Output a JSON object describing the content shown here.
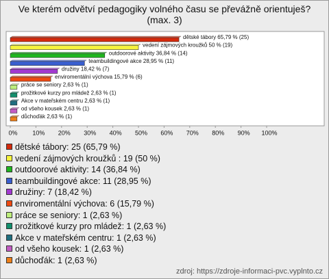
{
  "chart_data": {
    "type": "bar",
    "orientation": "horizontal",
    "title": "Ve kterém odvětví pedagogiky volného času se převážně orientuješ? (max. 3)",
    "categories": [
      "dětské tábory",
      "vedení zájmových kroužků",
      "outdoorové aktivity",
      "teambuildingové akce",
      "družiny",
      "enviromentální výchova",
      "práce se seniory",
      "prožitkové kurzy pro mládež",
      "Akce v mateřském centru",
      "od všeho kousek",
      "důchoďák"
    ],
    "values": [
      65.79,
      50,
      36.84,
      28.95,
      18.42,
      15.79,
      2.63,
      2.63,
      2.63,
      2.63,
      2.63
    ],
    "value_labels": [
      "dětské tábory 65,79 % (25)",
      "vedení zájmových kroužků  50 % (19)",
      "outdoorové aktivity 36,84 % (14)",
      "teambuildingové akce 28,95 % (11)",
      "družiny 18,42 % (7)",
      "enviromentální výchova 15,79 % (6)",
      "práce se seniory 2,63 % (1)",
      "prožitkové kurzy pro mládež 2,63 % (1)",
      "Akce v mateřském centru 2,63 % (1)",
      "od všeho kousek 2,63 % (1)",
      "důchoďák 2,63 % (1)"
    ],
    "legend_labels": [
      "dětské tábory: 25 (65,79 %)",
      "vedení zájmových kroužků : 19 (50 %)",
      "outdoorové aktivity: 14 (36,84 %)",
      "teambuildingové akce: 11 (28,95 %)",
      "družiny: 7 (18,42 %)",
      "enviromentální výchova: 6 (15,79 %)",
      "práce se seniory: 1 (2,63 %)",
      "prožitkové kurzy pro mládež: 1 (2,63 %)",
      "Akce v mateřském centru: 1 (2,63 %)",
      "od všeho kousek: 1 (2,63 %)",
      "důchoďák: 1 (2,63 %)"
    ],
    "colors": [
      "#d42a0c",
      "#f6f33c",
      "#1fb51f",
      "#3a5fd0",
      "#a23ad0",
      "#ee4a12",
      "#bdee7c",
      "#128f6c",
      "#1f6f80",
      "#c25cc2",
      "#ee7f18"
    ],
    "xlim": [
      0,
      100
    ],
    "xticks": [
      {
        "value": 0,
        "label": "0%"
      },
      {
        "value": 10,
        "label": "10%"
      },
      {
        "value": 20,
        "label": "20%"
      },
      {
        "value": 30,
        "label": "30%"
      },
      {
        "value": 40,
        "label": "40%"
      },
      {
        "value": 50,
        "label": "50%"
      },
      {
        "value": 60,
        "label": "60%"
      },
      {
        "value": 70,
        "label": "70%"
      },
      {
        "value": 80,
        "label": "80%"
      },
      {
        "value": 90,
        "label": "90%"
      },
      {
        "value": 100,
        "label": "100%"
      }
    ],
    "source": "zdroj: https://zdroje-informaci-pvc.vyplnto.cz"
  }
}
